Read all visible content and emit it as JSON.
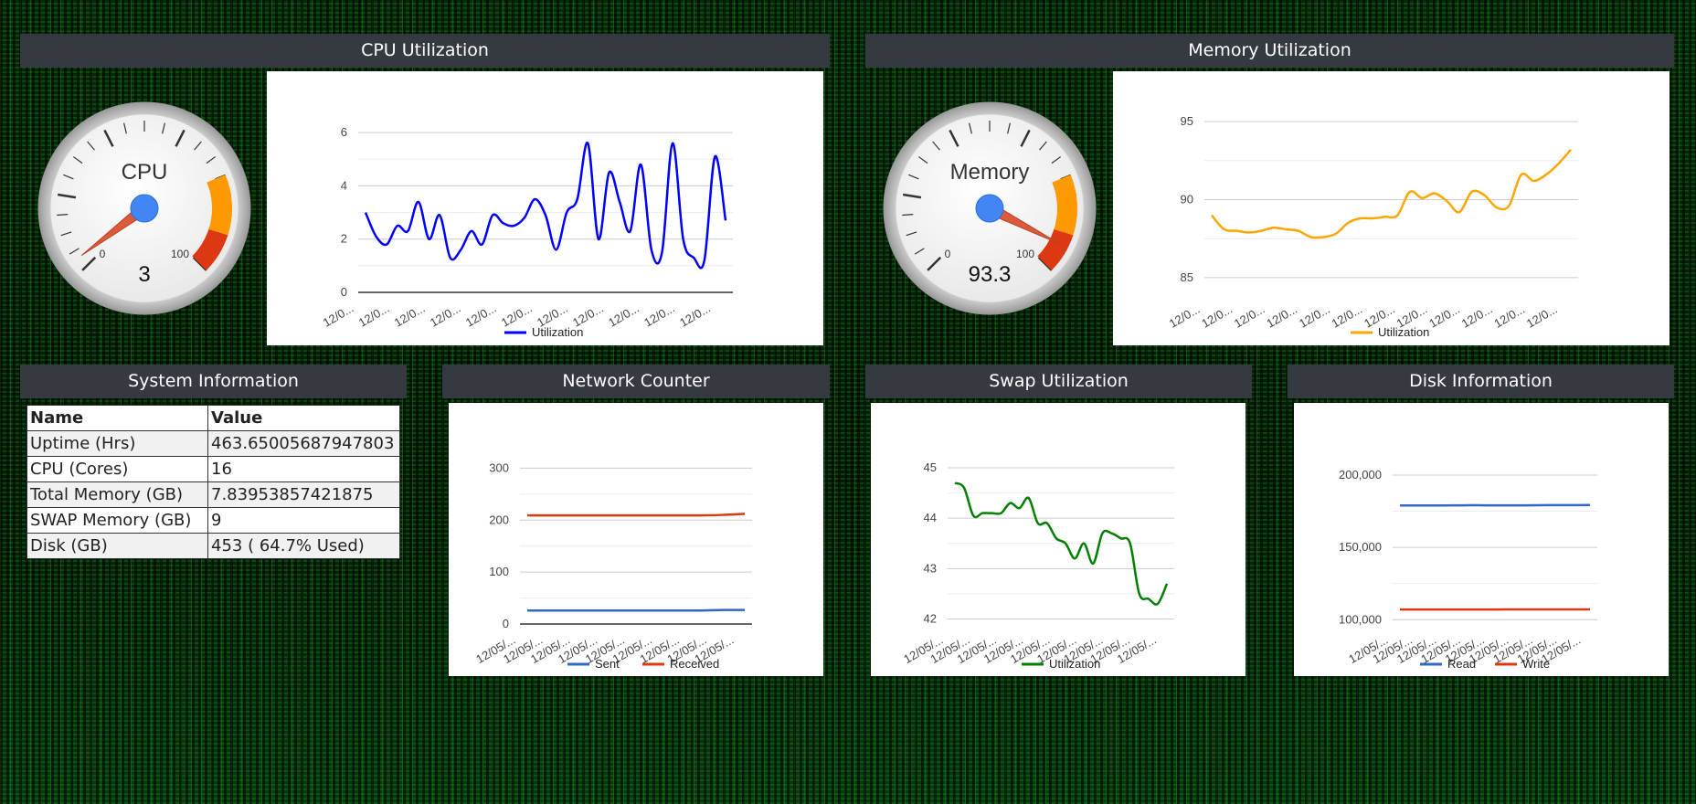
{
  "cpu": {
    "header": "CPU Utilization",
    "gauge_label": "CPU",
    "gauge_value": "3",
    "gauge_value_num": 3,
    "gauge_min": "0",
    "gauge_max": "100"
  },
  "memory": {
    "header": "Memory Utilization",
    "gauge_label": "Memory",
    "gauge_value": "93.3",
    "gauge_value_num": 93.3,
    "gauge_min": "0",
    "gauge_max": "100"
  },
  "system_info": {
    "header": "System Information",
    "col_name": "Name",
    "col_value": "Value",
    "rows": [
      {
        "name": "Uptime (Hrs)",
        "value": "463.65005687947803"
      },
      {
        "name": "CPU (Cores)",
        "value": "16"
      },
      {
        "name": "Total Memory (GB)",
        "value": "7.83953857421875"
      },
      {
        "name": "SWAP Memory (GB)",
        "value": "9"
      },
      {
        "name": "Disk (GB)",
        "value": "453 ( 64.7% Used)"
      }
    ]
  },
  "network": {
    "header": "Network Counter"
  },
  "swap": {
    "header": "Swap Utilization"
  },
  "disk": {
    "header": "Disk Information"
  },
  "colors": {
    "cpu_line": "#0000ff",
    "memory_line": "#ffa500",
    "swap_line": "#008000",
    "sent_line": "#3366cc",
    "received_line": "#dc3912",
    "read_line": "#3366cc",
    "write_line": "#dc3912",
    "header_bg": "#343a40"
  },
  "chart_data": [
    {
      "id": "cpu",
      "type": "line",
      "ylim": [
        0,
        7
      ],
      "yticks": [
        0,
        2,
        4,
        6
      ],
      "ytick_labels": [
        "0",
        "2",
        "4",
        "6"
      ],
      "xtick_labels": [
        "12/0...",
        "12/0...",
        "12/0...",
        "12/0...",
        "12/0...",
        "12/0...",
        "12/0...",
        "12/0...",
        "12/0...",
        "12/0...",
        "12/0..."
      ],
      "series": [
        {
          "name": "Utilization",
          "color": "#0000ff",
          "values": [
            3.0,
            2.1,
            1.8,
            2.5,
            2.3,
            3.4,
            2.0,
            2.9,
            1.3,
            1.6,
            2.3,
            1.8,
            2.9,
            2.6,
            2.5,
            2.8,
            3.5,
            2.9,
            1.6,
            3.0,
            3.5,
            5.6,
            2.0,
            4.5,
            3.4,
            2.3,
            4.8,
            1.6,
            1.5,
            5.6,
            2.0,
            1.3,
            1.2,
            5.1,
            2.7
          ]
        }
      ]
    },
    {
      "id": "memory",
      "type": "line",
      "ylim": [
        84,
        96
      ],
      "yticks": [
        85,
        90,
        95
      ],
      "ytick_labels": [
        "85",
        "90",
        "95"
      ],
      "xtick_labels": [
        "12/0...",
        "12/0...",
        "12/0...",
        "12/0...",
        "12/0...",
        "12/0...",
        "12/0...",
        "12/0...",
        "12/0...",
        "12/0...",
        "12/0...",
        "12/0..."
      ],
      "series": [
        {
          "name": "Utilization",
          "color": "#ffa500",
          "values": [
            89.0,
            88.1,
            88.0,
            87.9,
            88.0,
            88.2,
            88.1,
            88.0,
            87.6,
            87.6,
            87.8,
            88.5,
            88.8,
            88.8,
            88.9,
            89.0,
            90.5,
            90.1,
            90.4,
            89.9,
            89.2,
            90.5,
            90.3,
            89.5,
            89.6,
            91.6,
            91.2,
            91.6,
            92.3,
            93.2
          ]
        }
      ]
    },
    {
      "id": "network",
      "type": "line",
      "ylim": [
        0,
        320
      ],
      "yticks": [
        0,
        100,
        200,
        300
      ],
      "ytick_labels": [
        "0",
        "100",
        "200",
        "300"
      ],
      "xtick_labels": [
        "12/05/...",
        "12/05/...",
        "12/05/...",
        "12/05/...",
        "12/05/...",
        "12/05/...",
        "12/05/...",
        "12/05/...",
        "12/05/..."
      ],
      "series": [
        {
          "name": "Sent",
          "color": "#3366cc",
          "values": [
            26,
            26,
            26,
            26,
            26,
            26,
            26,
            26,
            26,
            27,
            27
          ]
        },
        {
          "name": "Received",
          "color": "#dc3912",
          "values": [
            209,
            209,
            209,
            209,
            209,
            209,
            209,
            209,
            209,
            210,
            212
          ]
        }
      ]
    },
    {
      "id": "swap",
      "type": "line",
      "ylim": [
        41.9,
        45.2
      ],
      "yticks": [
        42,
        43,
        44,
        45
      ],
      "ytick_labels": [
        "42",
        "43",
        "44",
        "45"
      ],
      "xtick_labels": [
        "12/05/...",
        "12/05/...",
        "12/05/...",
        "12/05/...",
        "12/05/...",
        "12/05/...",
        "12/05/...",
        "12/05/...",
        "12/05/..."
      ],
      "series": [
        {
          "name": "Utilization",
          "color": "#008000",
          "values": [
            44.7,
            44.6,
            44.05,
            44.1,
            44.1,
            44.1,
            44.3,
            44.2,
            44.4,
            43.9,
            43.9,
            43.6,
            43.5,
            43.2,
            43.5,
            43.1,
            43.7,
            43.7,
            43.6,
            43.5,
            42.5,
            42.4,
            42.3,
            42.7
          ]
        }
      ]
    },
    {
      "id": "disk",
      "type": "line",
      "ylim": [
        97000,
        212000
      ],
      "yticks": [
        100000,
        150000,
        200000
      ],
      "ytick_labels": [
        "100,000",
        "150,000",
        "200,000"
      ],
      "xtick_labels": [
        "12/05/...",
        "12/05/...",
        "12/05/...",
        "12/05/...",
        "12/05/...",
        "12/05/...",
        "12/05/...",
        "12/05/...",
        "12/05/..."
      ],
      "series": [
        {
          "name": "Read",
          "color": "#3366cc",
          "values": [
            179000,
            179000,
            179000,
            179100,
            179100,
            179100,
            179100,
            179200,
            179200,
            179300
          ]
        },
        {
          "name": "Write",
          "color": "#dc3912",
          "values": [
            107000,
            107000,
            107000,
            107000,
            107000,
            107100,
            107100,
            107100,
            107100,
            107100
          ]
        }
      ]
    }
  ]
}
